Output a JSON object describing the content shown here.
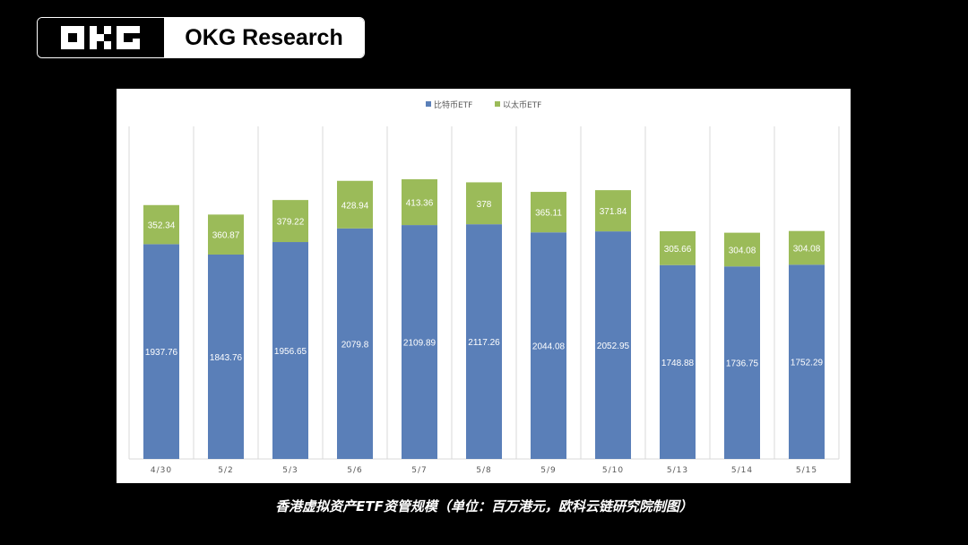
{
  "brand": {
    "name": "OKG Research",
    "logo_text": "OKG"
  },
  "caption": "香港虚拟资产ETF资管规模（单位：百万港元，欧科云链研究院制图）",
  "chart_data": {
    "type": "bar",
    "stacked": true,
    "title": "",
    "xlabel": "",
    "ylabel": "",
    "ylim": [
      0,
      3000
    ],
    "legend_position": "top-center",
    "grid": "vertical category separators",
    "categories": [
      "4/30",
      "5/2",
      "5/3",
      "5/6",
      "5/7",
      "5/8",
      "5/9",
      "5/10",
      "5/13",
      "5/14",
      "5/15"
    ],
    "series": [
      {
        "name": "比特币ETF",
        "color": "#5a7fb8",
        "values": [
          1937.76,
          1843.76,
          1956.65,
          2079.8,
          2109.89,
          2117.26,
          2044.08,
          2052.95,
          1748.88,
          1736.75,
          1752.29
        ]
      },
      {
        "name": "以太币ETF",
        "color": "#9bbb59",
        "values": [
          352.34,
          360.87,
          379.22,
          428.94,
          413.36,
          378,
          365.11,
          371.84,
          305.66,
          304.08,
          304.08
        ]
      }
    ]
  }
}
